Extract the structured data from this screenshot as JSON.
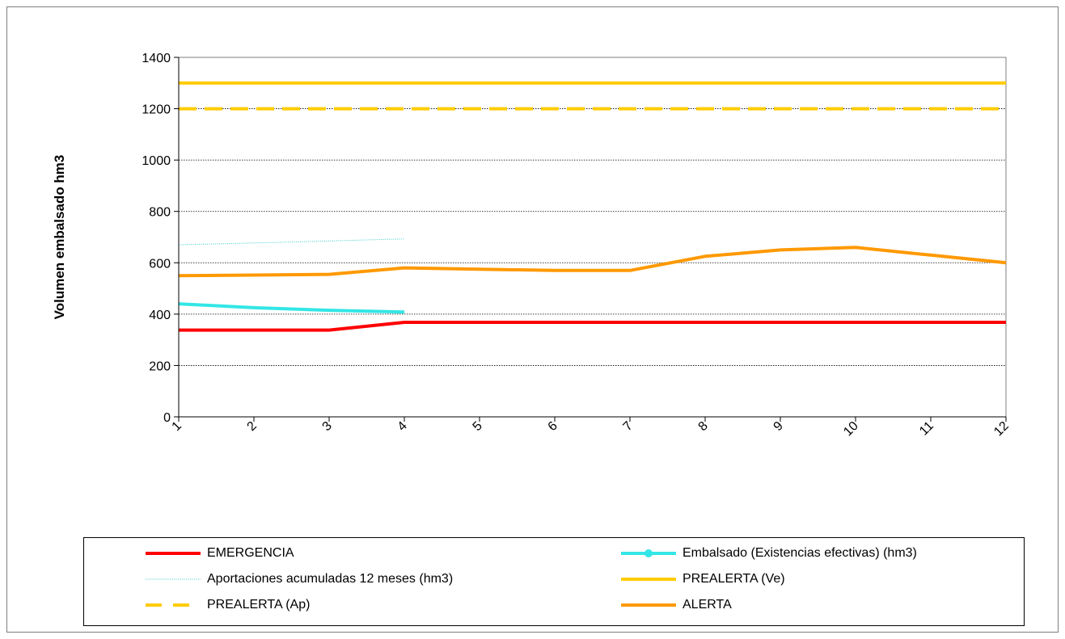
{
  "chart_data": {
    "type": "line",
    "title": "",
    "xlabel": "",
    "ylabel": "Volumen embalsado hm3",
    "x": [
      1,
      2,
      3,
      4,
      5,
      6,
      7,
      8,
      9,
      10,
      11,
      12
    ],
    "ylim": [
      0,
      1400
    ],
    "yticks": [
      0,
      200,
      400,
      600,
      800,
      1000,
      1200,
      1400
    ],
    "grid": "horizontal",
    "legend_position": "bottom",
    "series": [
      {
        "name": "EMERGENCIA",
        "color": "#ff0000",
        "style": "solid",
        "values": [
          338,
          338,
          338,
          368,
          368,
          368,
          368,
          368,
          368,
          368,
          368,
          368
        ]
      },
      {
        "name": "Embalsado (Existencias efectivas) (hm3)",
        "color": "#33e6e6",
        "style": "solid-marker",
        "values": [
          440,
          425,
          415,
          408,
          null,
          null,
          null,
          null,
          null,
          null,
          null,
          null
        ]
      },
      {
        "name": "Aportaciones acumuladas 12 meses (hm3)",
        "color": "#33cccc",
        "style": "dotted",
        "values": [
          670,
          677,
          685,
          693,
          null,
          null,
          null,
          null,
          null,
          null,
          null,
          null
        ]
      },
      {
        "name": "PREALERTA (Ve)",
        "color": "#ffcc00",
        "style": "solid",
        "values": [
          1300,
          1300,
          1300,
          1300,
          1300,
          1300,
          1300,
          1300,
          1300,
          1300,
          1300,
          1300
        ]
      },
      {
        "name": "PREALERTA (Ap)",
        "color": "#ffcc00",
        "style": "dashed",
        "values": [
          1200,
          1200,
          1200,
          1200,
          1200,
          1200,
          1200,
          1200,
          1200,
          1200,
          1200,
          1200
        ]
      },
      {
        "name": "ALERTA",
        "color": "#ff9900",
        "style": "solid",
        "values": [
          550,
          552,
          555,
          580,
          575,
          570,
          570,
          625,
          650,
          660,
          630,
          600
        ]
      }
    ]
  }
}
